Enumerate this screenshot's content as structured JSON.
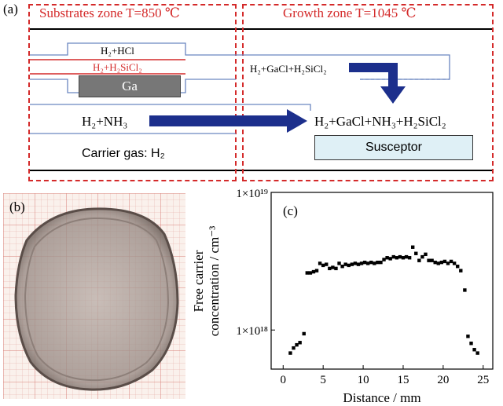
{
  "panel_a": {
    "label": "(a)",
    "substrates_zone_title": "Substrates zone T=850 ℃",
    "growth_zone_title": "Growth zone T=1045 ℃",
    "gas_h2_hcl": "H₂+HCl",
    "gas_h2_h2sicl2": "H₂+H₂SiCl₂",
    "ga_label": "Ga",
    "gas_h2_gacl_h2sicl2": "H₂+GaCl+H₂SiCl₂",
    "gas_h2_nh3": "H₂+NH₃",
    "gas_mixture": "H₂+GaCl+NH₃+H₂SiCl₂",
    "carrier_gas": "Carrier gas: H₂",
    "susceptor_label": "Susceptor"
  },
  "panel_b": {
    "label": "(b)"
  },
  "panel_c": {
    "label": "(c)"
  },
  "chart_data": {
    "type": "scatter",
    "xlabel": "Distance / mm",
    "ylabel_line1": "Free carrier",
    "ylabel_line2": "concentration / cm⁻³",
    "ylabel": "Free carrier concentration / cm⁻³",
    "x_ticks": [
      0,
      5,
      10,
      15,
      20,
      25
    ],
    "y_ticks": [
      {
        "value": 1e+19,
        "label": "1×10¹⁹"
      },
      {
        "value": 1e+18,
        "label": "1×10¹⁸"
      }
    ],
    "y_scale": "log",
    "xlim": [
      -1.5,
      26.2
    ],
    "ylim": [
      5.2e+17,
      1e+19
    ],
    "grid": false,
    "points": [
      [
        0.9,
        6.8e+17
      ],
      [
        1.3,
        7.4e+17
      ],
      [
        1.7,
        7.8e+17
      ],
      [
        2.1,
        8.1e+17
      ],
      [
        2.6,
        9.4e+17
      ],
      [
        3.0,
        2.6e+18
      ],
      [
        3.4,
        2.6e+18
      ],
      [
        3.8,
        2.65e+18
      ],
      [
        4.2,
        2.7e+18
      ],
      [
        4.6,
        3.05e+18
      ],
      [
        5.0,
        2.95e+18
      ],
      [
        5.4,
        3e+18
      ],
      [
        5.8,
        2.8e+18
      ],
      [
        6.2,
        2.85e+18
      ],
      [
        6.6,
        2.8e+18
      ],
      [
        7.0,
        3.05e+18
      ],
      [
        7.4,
        2.9e+18
      ],
      [
        7.8,
        3e+18
      ],
      [
        8.2,
        2.95e+18
      ],
      [
        8.6,
        3e+18
      ],
      [
        9.0,
        3.05e+18
      ],
      [
        9.4,
        3e+18
      ],
      [
        9.8,
        3.05e+18
      ],
      [
        10.2,
        3.1e+18
      ],
      [
        10.6,
        3.05e+18
      ],
      [
        11.0,
        3.1e+18
      ],
      [
        11.4,
        3.05e+18
      ],
      [
        11.8,
        3.1e+18
      ],
      [
        12.2,
        3.1e+18
      ],
      [
        12.6,
        3.25e+18
      ],
      [
        13.0,
        3.35e+18
      ],
      [
        13.4,
        3.3e+18
      ],
      [
        13.8,
        3.4e+18
      ],
      [
        14.2,
        3.35e+18
      ],
      [
        14.6,
        3.4e+18
      ],
      [
        15.0,
        3.35e+18
      ],
      [
        15.4,
        3.4e+18
      ],
      [
        15.8,
        3.35e+18
      ],
      [
        16.2,
        4e+18
      ],
      [
        16.6,
        3.6e+18
      ],
      [
        17.0,
        3.2e+18
      ],
      [
        17.4,
        3.4e+18
      ],
      [
        17.8,
        3.55e+18
      ],
      [
        18.2,
        3.2e+18
      ],
      [
        18.6,
        3.2e+18
      ],
      [
        19.0,
        3.1e+18
      ],
      [
        19.4,
        3.05e+18
      ],
      [
        19.8,
        3.1e+18
      ],
      [
        20.2,
        3.15e+18
      ],
      [
        20.6,
        3.05e+18
      ],
      [
        21.0,
        3.15e+18
      ],
      [
        21.4,
        3.05e+18
      ],
      [
        21.8,
        2.9e+18
      ],
      [
        22.2,
        2.7e+18
      ],
      [
        22.7,
        1.95e+18
      ],
      [
        23.1,
        9e+17
      ],
      [
        23.5,
        8e+17
      ],
      [
        23.9,
        7.2e+17
      ],
      [
        24.3,
        6.8e+17
      ]
    ]
  }
}
